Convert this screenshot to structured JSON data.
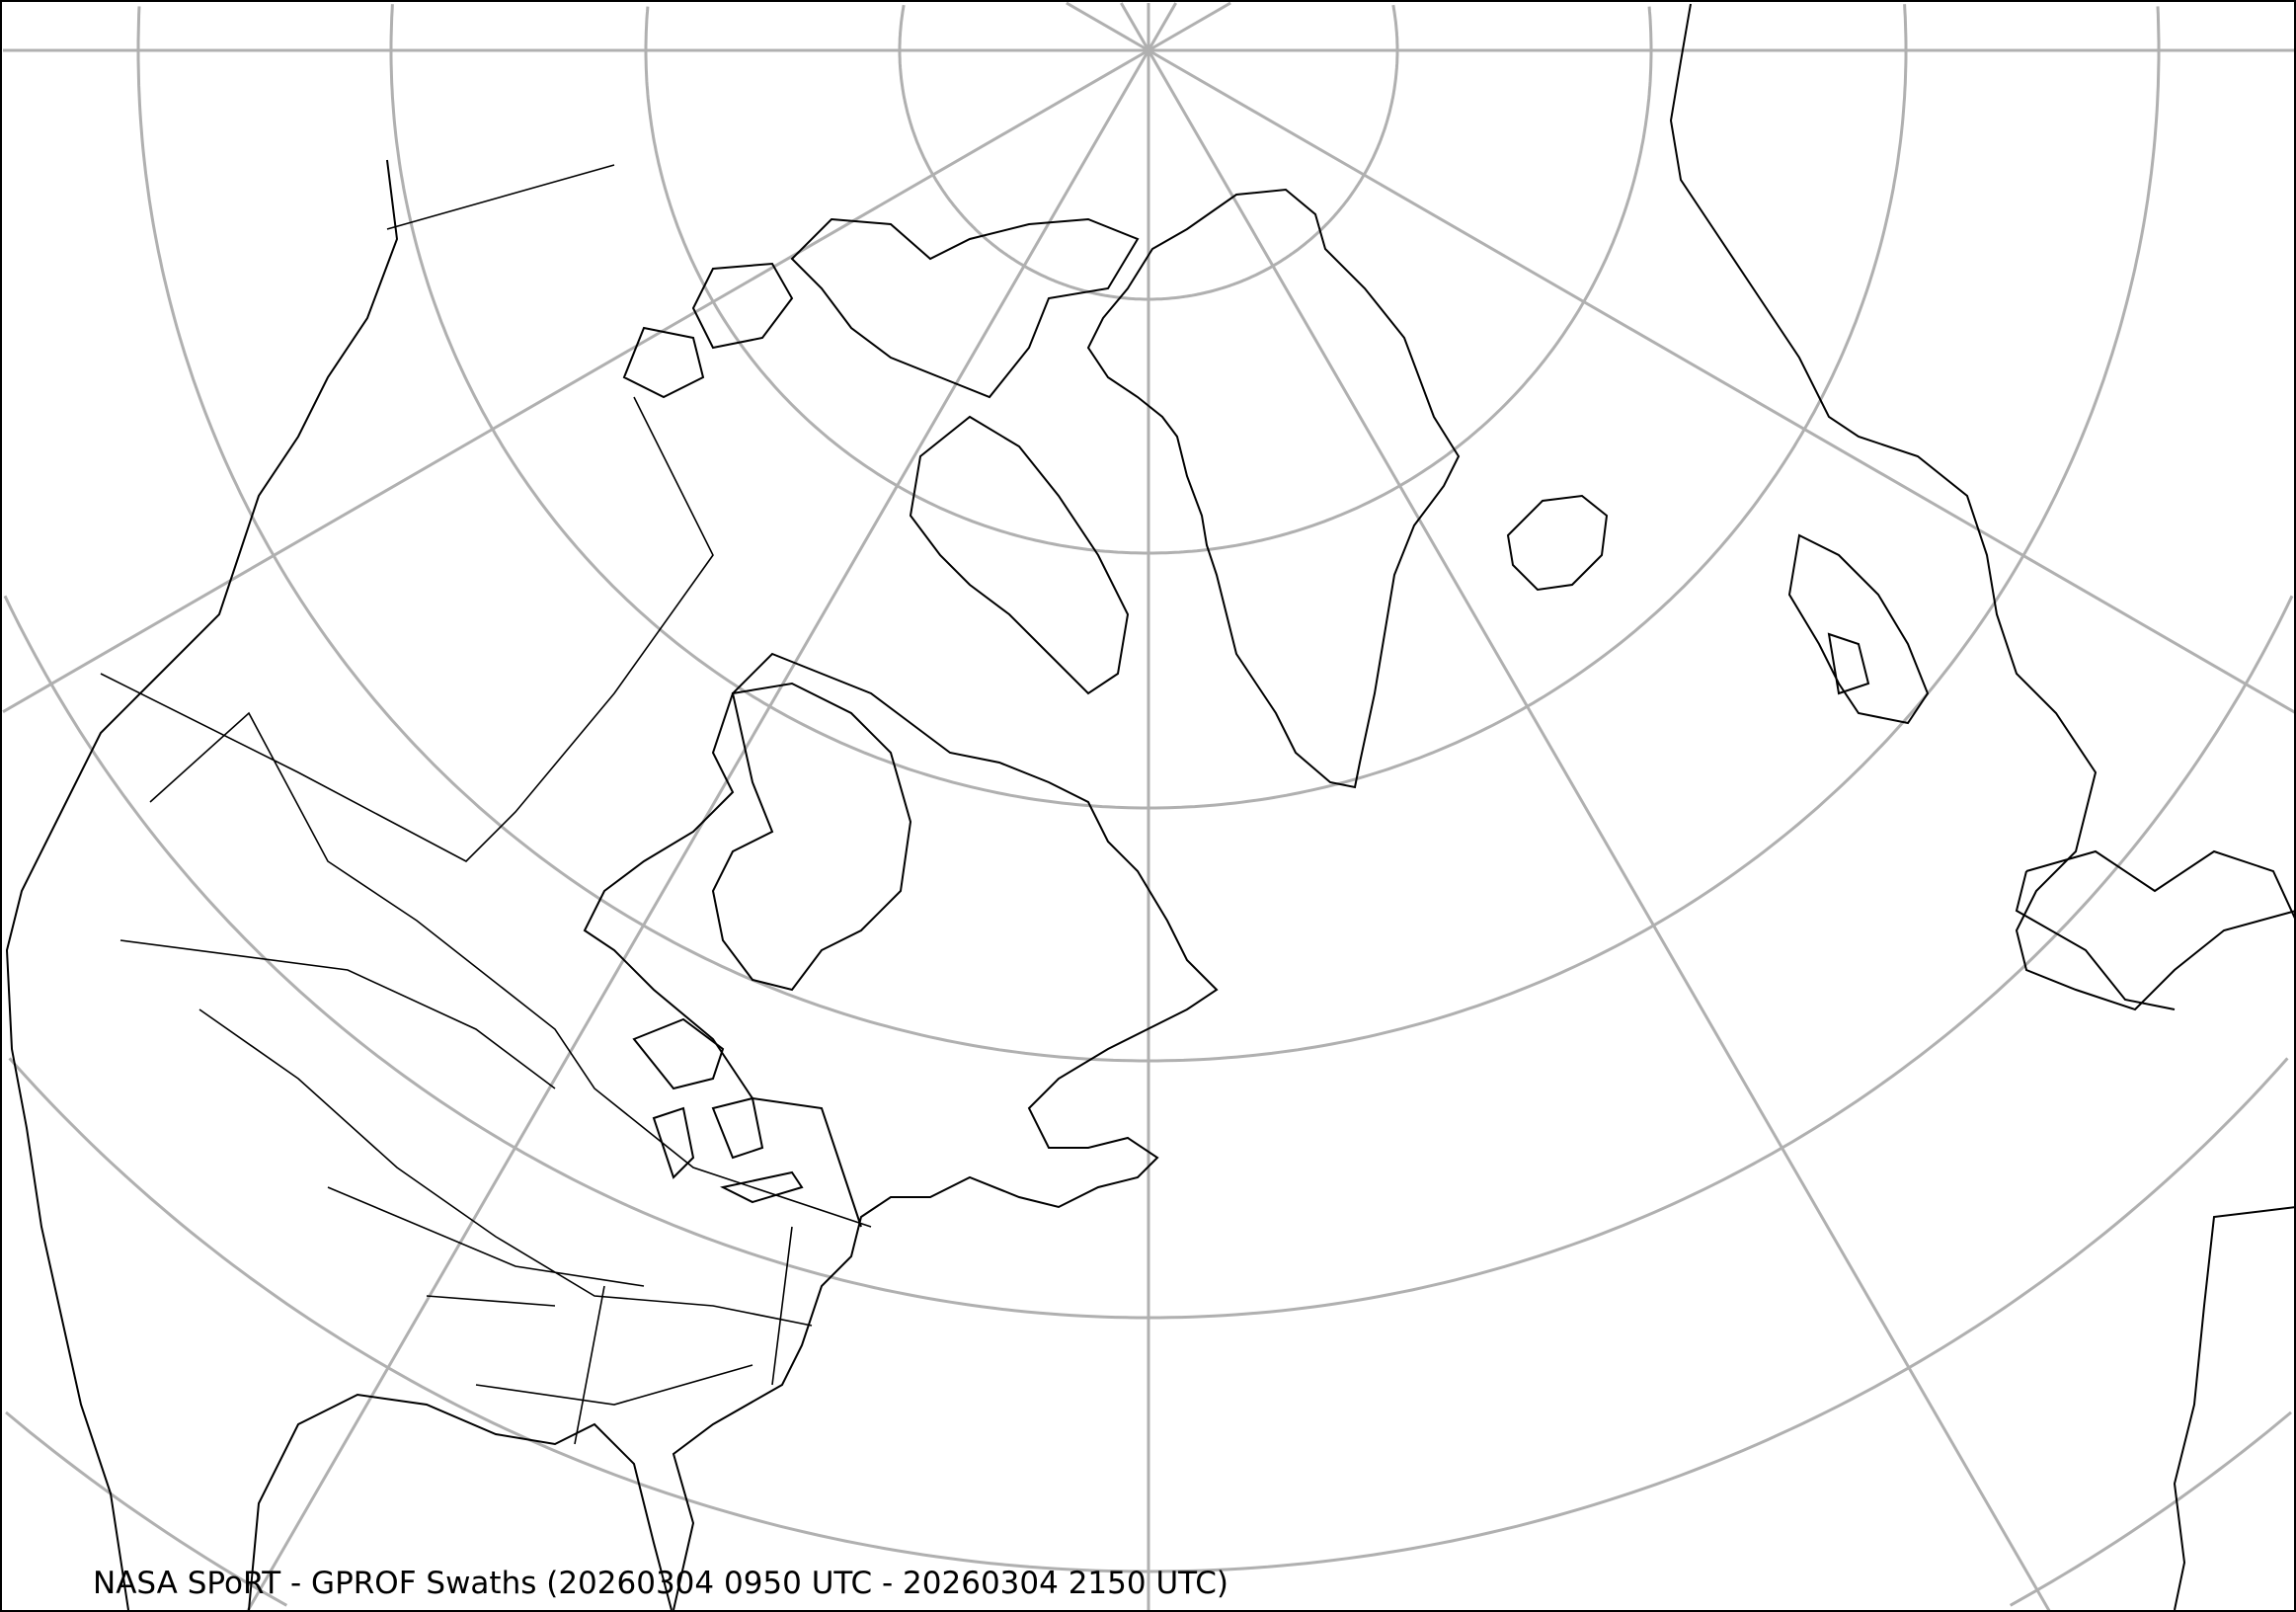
{
  "title": "NASA SPoRT - GPROF Swaths (20260304 0950 UTC - 20260304 2150 UTC)",
  "map": {
    "projection": "north-polar stereographic",
    "region": "North America, Greenland, North Atlantic, Western Europe",
    "colors": {
      "graticule": "#b0b0b0",
      "coastline": "#000000",
      "background": "#ffffff"
    }
  }
}
